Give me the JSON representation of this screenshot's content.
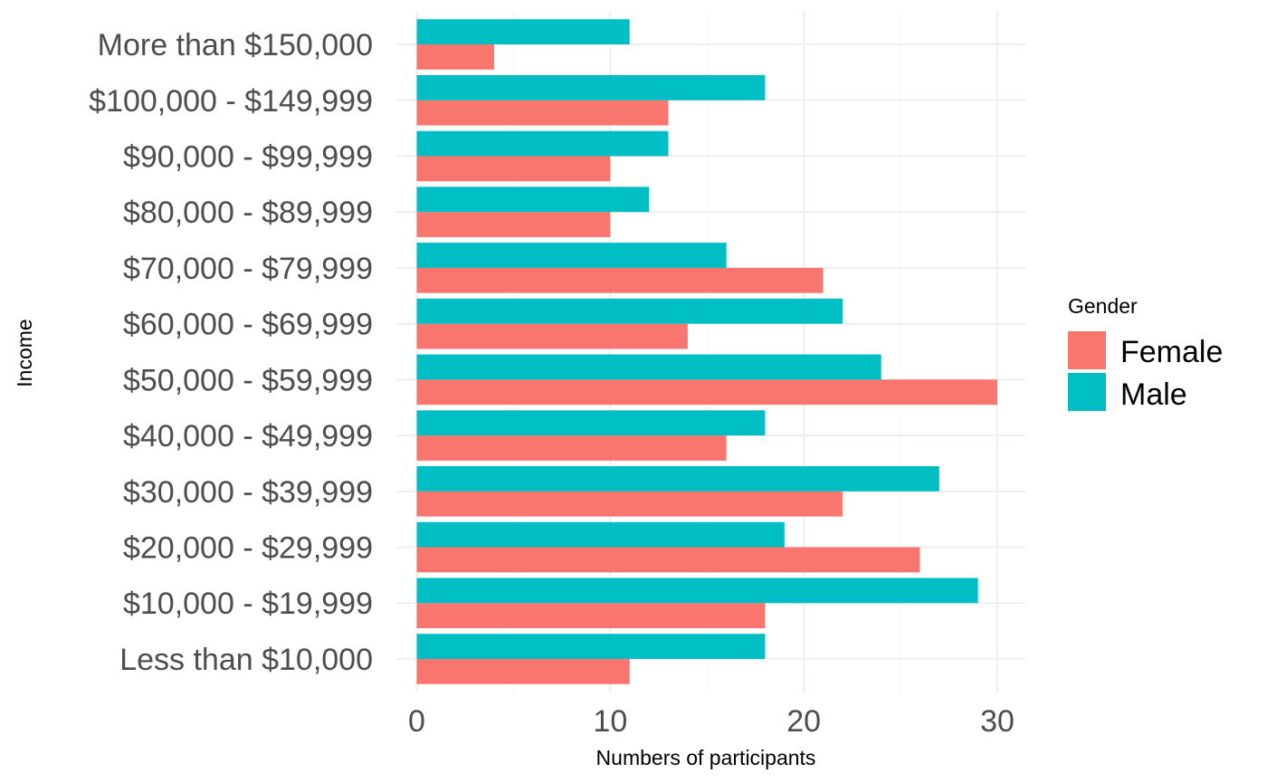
{
  "chart_data": {
    "type": "bar",
    "orientation": "horizontal",
    "xlabel": "Numbers of participants",
    "ylabel": "Income",
    "xlim": [
      0,
      31.5
    ],
    "x_ticks": [
      0,
      10,
      20,
      30
    ],
    "categories": [
      "Less than $10,000",
      "$10,000 - $19,999",
      "$20,000 - $29,999",
      "$30,000 - $39,999",
      "$40,000 - $49,999",
      "$50,000 - $59,999",
      "$60,000 - $69,999",
      "$70,000 - $79,999",
      "$80,000 - $89,999",
      "$90,000 - $99,999",
      "$100,000 - $149,999",
      "More than $150,000"
    ],
    "series": [
      {
        "name": "Female",
        "color": "#F8766D",
        "values": [
          11,
          18,
          26,
          22,
          16,
          30,
          14,
          21,
          10,
          10,
          13,
          4
        ]
      },
      {
        "name": "Male",
        "color": "#00BFC4",
        "values": [
          18,
          29,
          19,
          27,
          18,
          24,
          22,
          16,
          12,
          13,
          18,
          11
        ]
      }
    ],
    "grid": true,
    "legend": {
      "title": "Gender",
      "placement": "right"
    }
  }
}
